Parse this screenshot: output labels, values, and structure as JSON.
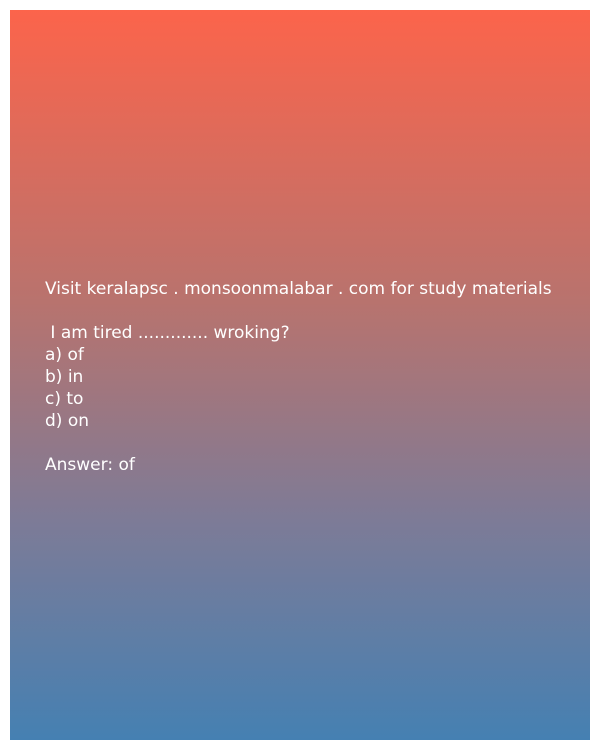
{
  "promo": "Visit keralapsc . monsoonmalabar . com for study materials",
  "question": " I am tired ............. wroking?",
  "options": [
    "a) of",
    "b) in",
    "c) to",
    "d) on"
  ],
  "answer": "Answer: of",
  "colors": {
    "gradient_top": "#fc644b",
    "gradient_bottom": "#4580b2",
    "text": "#ffffff"
  }
}
